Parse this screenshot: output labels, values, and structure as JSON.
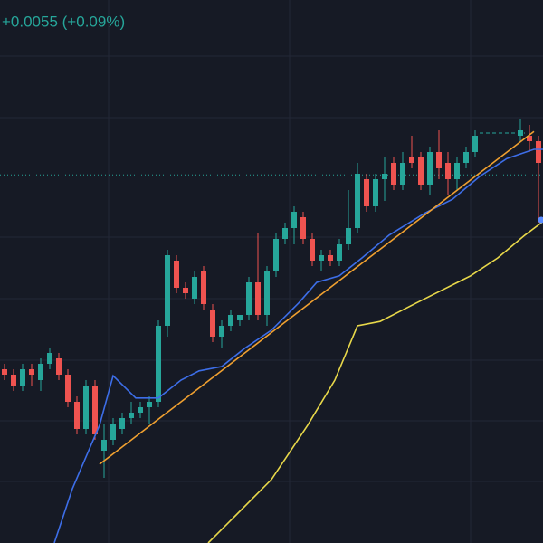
{
  "chart_data": {
    "type": "candlestick",
    "change_label": "+0.0055 (+0.09%)",
    "up_color": "#26a69a",
    "down_color": "#ef5350",
    "xlim": [
      -0.5,
      59.5
    ],
    "ylim": [
      0,
      100
    ],
    "open": [
      32,
      31,
      29,
      32,
      30,
      33,
      34,
      31,
      26,
      21,
      29,
      17,
      19,
      21,
      23,
      24,
      25,
      26,
      40,
      52,
      47,
      45,
      50,
      43,
      38,
      40,
      41,
      42,
      48,
      42,
      50,
      56,
      58,
      60,
      56,
      52,
      53,
      52,
      55,
      58,
      67,
      62,
      67,
      70,
      66,
      71,
      71,
      66,
      72,
      70,
      67,
      70,
      72,
      null,
      null,
      null,
      null,
      75,
      75,
      74
    ],
    "high": [
      33,
      32,
      33,
      33,
      34,
      36,
      35,
      32,
      27,
      30,
      30,
      22,
      23,
      24,
      26,
      26,
      27,
      41,
      54,
      53,
      48,
      50,
      51,
      44,
      41,
      43,
      42,
      49,
      57,
      51,
      57,
      59,
      62,
      61,
      57,
      54,
      54,
      56,
      65,
      70,
      68,
      68,
      71,
      71,
      72,
      75,
      72,
      73,
      76,
      72,
      71,
      73,
      76,
      null,
      null,
      null,
      null,
      78,
      77,
      75
    ],
    "low": [
      30,
      28,
      28,
      29,
      28,
      32,
      30,
      25,
      20,
      20,
      19,
      12,
      18,
      20,
      22,
      23,
      22,
      25,
      38,
      46,
      45,
      44,
      43,
      37,
      36,
      39,
      40,
      41,
      41,
      40,
      49,
      55,
      55,
      55,
      51,
      50,
      51,
      51,
      54,
      57,
      61,
      61,
      63,
      65,
      65,
      69,
      65,
      64,
      67,
      64,
      65,
      69,
      71,
      null,
      null,
      null,
      null,
      74,
      72,
      59
    ],
    "close": [
      31,
      29,
      32,
      31,
      33,
      35,
      31,
      26,
      21,
      29,
      20,
      19,
      22,
      23,
      24,
      25,
      26,
      40,
      53,
      47,
      46,
      49,
      44,
      38,
      40,
      42,
      42,
      48,
      42,
      50,
      56,
      58,
      61,
      56,
      52,
      53,
      52,
      55,
      58,
      68,
      62,
      67,
      68,
      66,
      70,
      70,
      66,
      72,
      69,
      67,
      70,
      72,
      75,
      null,
      null,
      null,
      null,
      76,
      74,
      70
    ],
    "series": [
      {
        "color": "#3d6ee8",
        "x": [
          5.5,
          7.5,
          10.5,
          12,
          14.5,
          17,
          19.5,
          21.5,
          24,
          26.5,
          29.5,
          32.5,
          34.5,
          37,
          39.5,
          42.5,
          46.5,
          49.5,
          52.5,
          55.5,
          58.5,
          59.5
        ],
        "values": [
          0,
          10,
          21.7,
          30.8,
          26.7,
          26.7,
          30,
          31.7,
          32.5,
          35.8,
          39.2,
          44.2,
          48,
          49.2,
          52.5,
          56.7,
          60.8,
          63.3,
          67.5,
          70.8,
          72.5,
          72.5
        ]
      },
      {
        "color": "#e8d84a",
        "x": [
          22.5,
          25.5,
          29.5,
          33.5,
          36.5,
          39,
          41.5,
          45.5,
          48.5,
          51.5,
          54.5,
          57.5,
          59.5
        ],
        "values": [
          0,
          5,
          11.7,
          21.7,
          30,
          40,
          40.8,
          44.2,
          46.7,
          49.2,
          52.5,
          56.7,
          59.2
        ]
      },
      {
        "color": "#f0a030",
        "x": [
          10.5,
          58.5
        ],
        "values": [
          14.5,
          75.8
        ]
      },
      {
        "color": "#26a69a",
        "dash": true,
        "x": [
          52.5,
          57.5
        ],
        "values": [
          75.5,
          75.5
        ]
      }
    ],
    "price_line": 67.8,
    "marker": {
      "x": 59.3,
      "y": 59.5,
      "color": "#5b8cff"
    }
  }
}
